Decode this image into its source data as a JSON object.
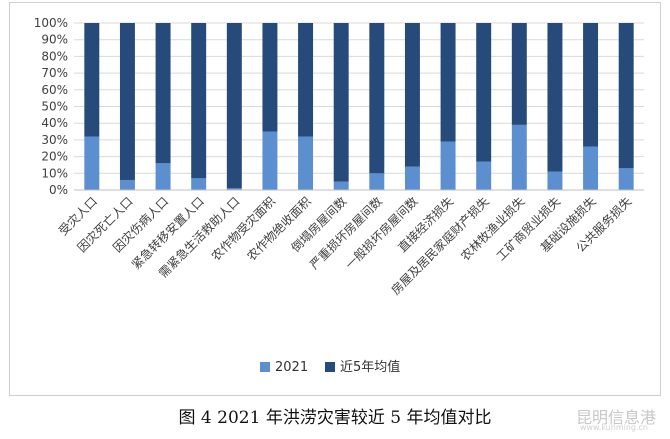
{
  "chart_data": {
    "type": "bar",
    "stacked": true,
    "title": "",
    "xlabel": "",
    "ylabel": "",
    "ylim": [
      0,
      100
    ],
    "yticks": [
      "0%",
      "10%",
      "20%",
      "30%",
      "40%",
      "50%",
      "60%",
      "70%",
      "80%",
      "90%",
      "100%"
    ],
    "grid": true,
    "legend_position": "bottom",
    "categories": [
      "受灾人口",
      "因灾死亡人口",
      "因灾伤病人口",
      "紧急转移安置人口",
      "需紧急生活救助人口",
      "农作物受灾面积",
      "农作物绝收面积",
      "倒塌房屋间数",
      "严重损坏房屋间数",
      "一般损坏房屋间数",
      "直接经济损失",
      "房屋及居民家庭财产损失",
      "农林牧渔业损失",
      "工矿商贸业损失",
      "基础设施损失",
      "公共服务损失"
    ],
    "series": [
      {
        "name": "2021",
        "color": "#5b8fcf",
        "values": [
          32,
          6,
          16,
          7,
          1,
          35,
          32,
          5,
          10,
          14,
          29,
          17,
          39,
          11,
          26,
          13
        ]
      },
      {
        "name": "近5年均值",
        "color": "#264a7a",
        "values": [
          68,
          94,
          84,
          93,
          99,
          65,
          68,
          95,
          90,
          86,
          71,
          83,
          61,
          89,
          74,
          87
        ]
      }
    ]
  },
  "caption": "图 4 2021 年洪涝灾害较近 5 年均值对比",
  "watermark": "昆明信息港",
  "watermark_sub": "www.kunming.cn"
}
